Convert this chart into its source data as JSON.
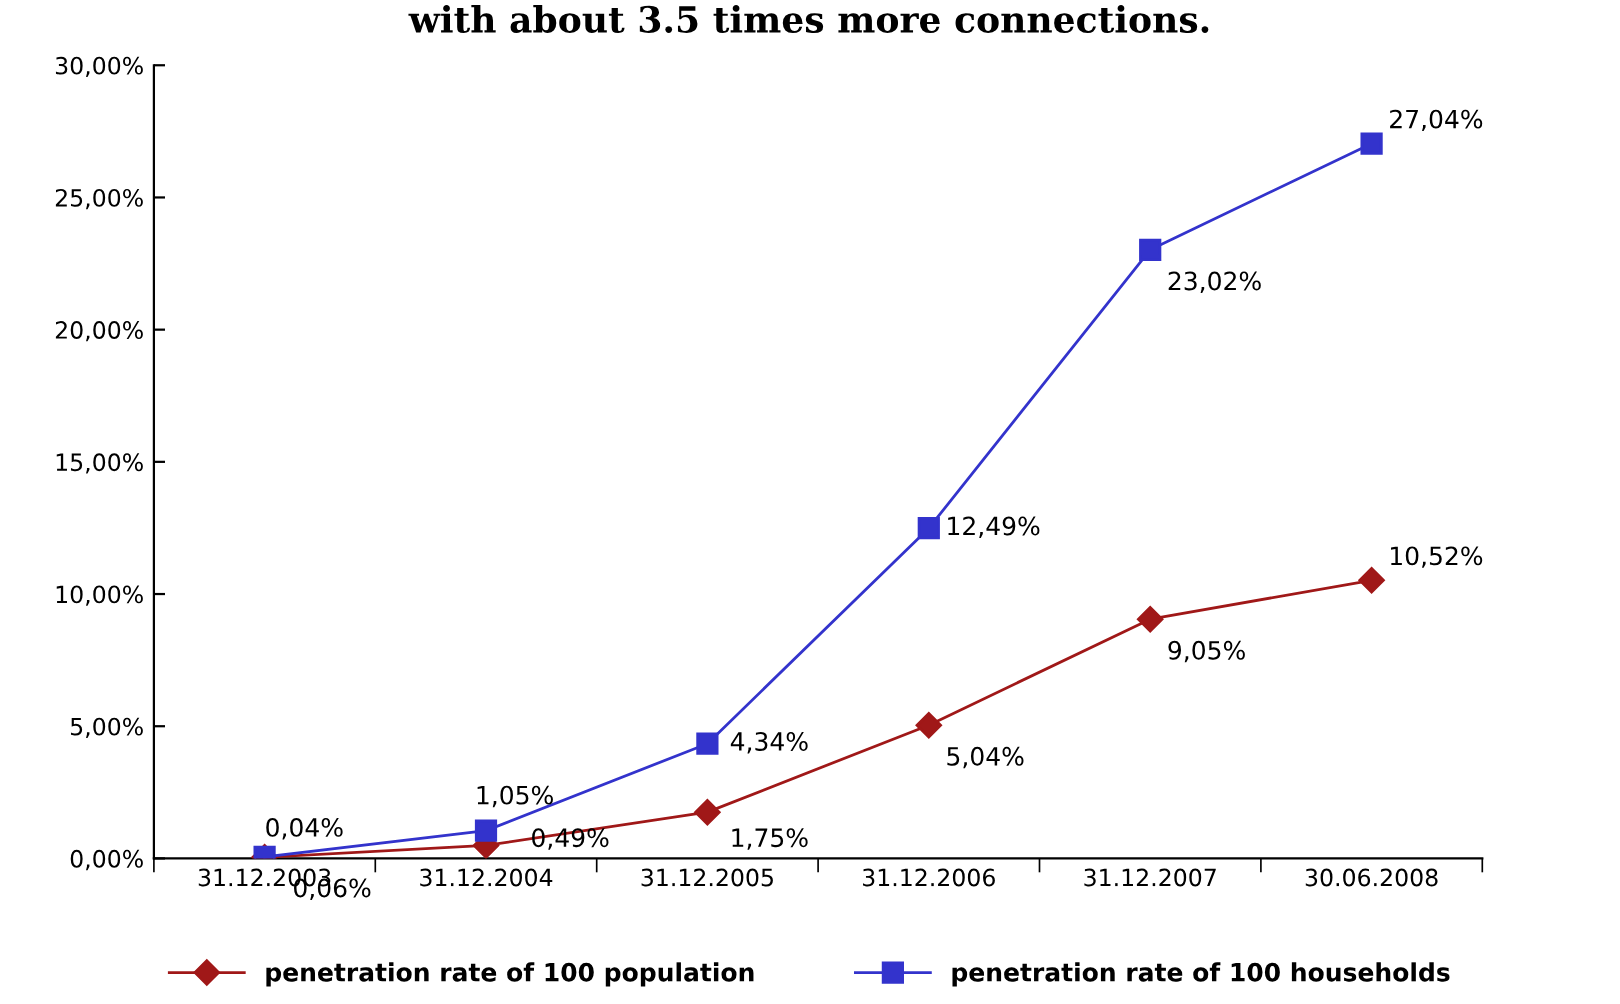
{
  "chart_data": {
    "type": "line",
    "annotations": [
      "with about 3.5 times more connections."
    ],
    "categories": [
      "31.12.2003",
      "31.12.2004",
      "31.12.2005",
      "31.12.2006",
      "31.12.2007",
      "30.06.2008"
    ],
    "series": [
      {
        "name": "penetration rate of 100 population",
        "color": "#a01818",
        "marker": "diamond",
        "values": [
          0.04,
          0.49,
          1.75,
          5.04,
          9.05,
          10.52
        ],
        "value_labels": [
          "0,04%",
          "0,49%",
          "1,75%",
          "5,04%",
          "9,05%",
          "10,52%"
        ]
      },
      {
        "name": "penetration rate of 100 households",
        "color": "#3333cc",
        "marker": "square",
        "values": [
          0.06,
          1.05,
          4.34,
          12.49,
          23.02,
          27.04
        ],
        "value_labels": [
          "0,06%",
          "1,05%",
          "4,34%",
          "12,49%",
          "23,02%",
          "27,04%"
        ]
      }
    ],
    "ylim": [
      0,
      30
    ],
    "yticks": [
      {
        "value": 0,
        "label": "0,00%"
      },
      {
        "value": 5,
        "label": "5,00%"
      },
      {
        "value": 10,
        "label": "10,00%"
      },
      {
        "value": 15,
        "label": "15,00%"
      },
      {
        "value": 20,
        "label": "20,00%"
      },
      {
        "value": 25,
        "label": "25,00%"
      },
      {
        "value": 30,
        "label": "30,00%"
      }
    ],
    "grid": false,
    "legend": "bottom"
  }
}
